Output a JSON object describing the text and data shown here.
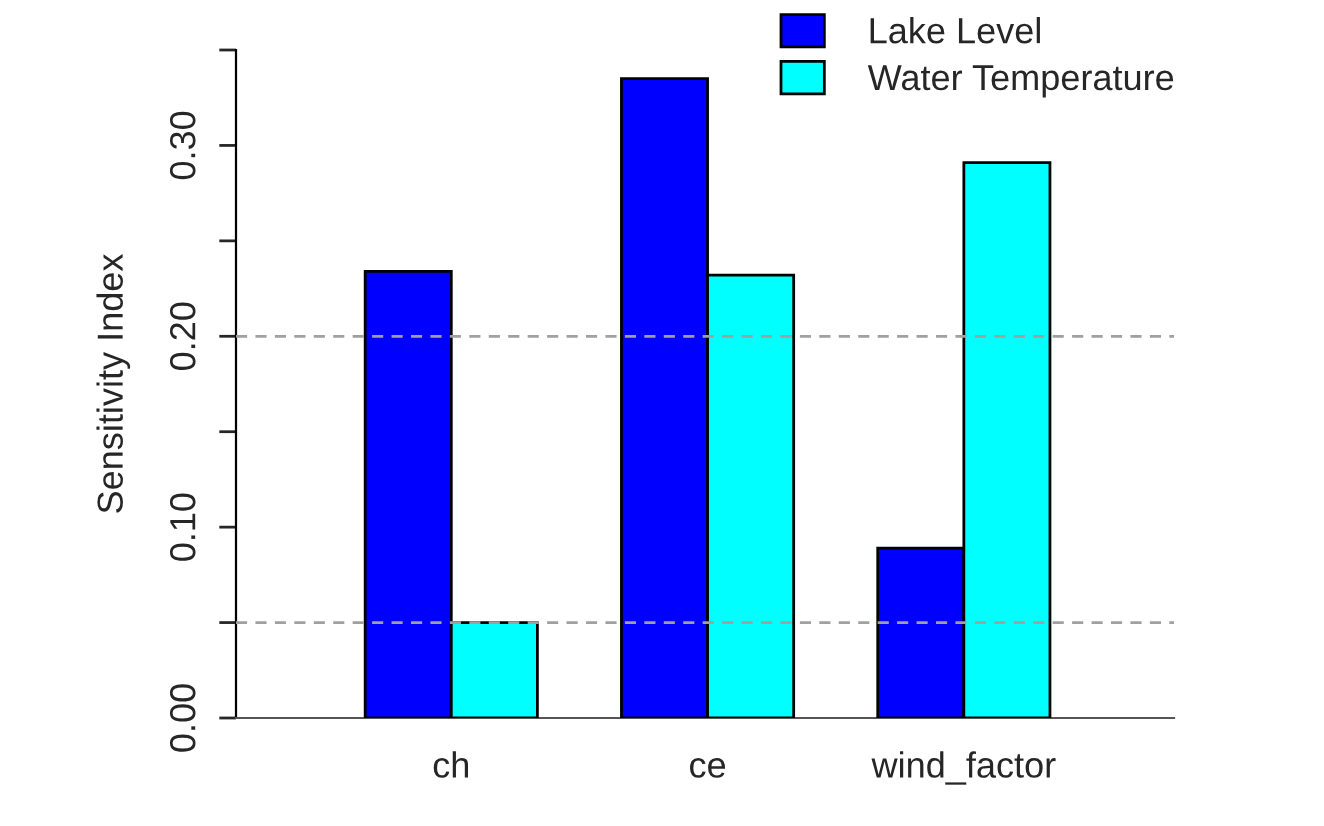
{
  "chart_data": {
    "type": "bar",
    "ylabel": "Sensitivity Index",
    "categories": [
      "ch",
      "ce",
      "wind_factor"
    ],
    "series": [
      {
        "name": "Lake Level",
        "color": "#0000ff",
        "values": [
          0.234,
          0.335,
          0.089
        ]
      },
      {
        "name": "Water Temperature",
        "color": "#00ffff",
        "values": [
          0.05,
          0.232,
          0.291
        ]
      }
    ],
    "ylim": [
      0,
      0.35
    ],
    "yticks": [
      {
        "value": 0,
        "label": "0.00"
      },
      {
        "value": 0.05,
        "label": null
      },
      {
        "value": 0.1,
        "label": "0.10"
      },
      {
        "value": 0.15,
        "label": null
      },
      {
        "value": 0.2,
        "label": "0.20"
      },
      {
        "value": 0.25,
        "label": null
      },
      {
        "value": 0.3,
        "label": "0.30"
      },
      {
        "value": 0.35,
        "label": null
      }
    ],
    "ref_lines": [
      {
        "axis": "y",
        "value": 0.05,
        "color": "#a0a0a0",
        "line_style": "dashed"
      },
      {
        "axis": "y",
        "value": 0.2,
        "color": "#a0a0a0",
        "line_style": "dashed"
      }
    ],
    "grid": false,
    "legend": "top right"
  }
}
